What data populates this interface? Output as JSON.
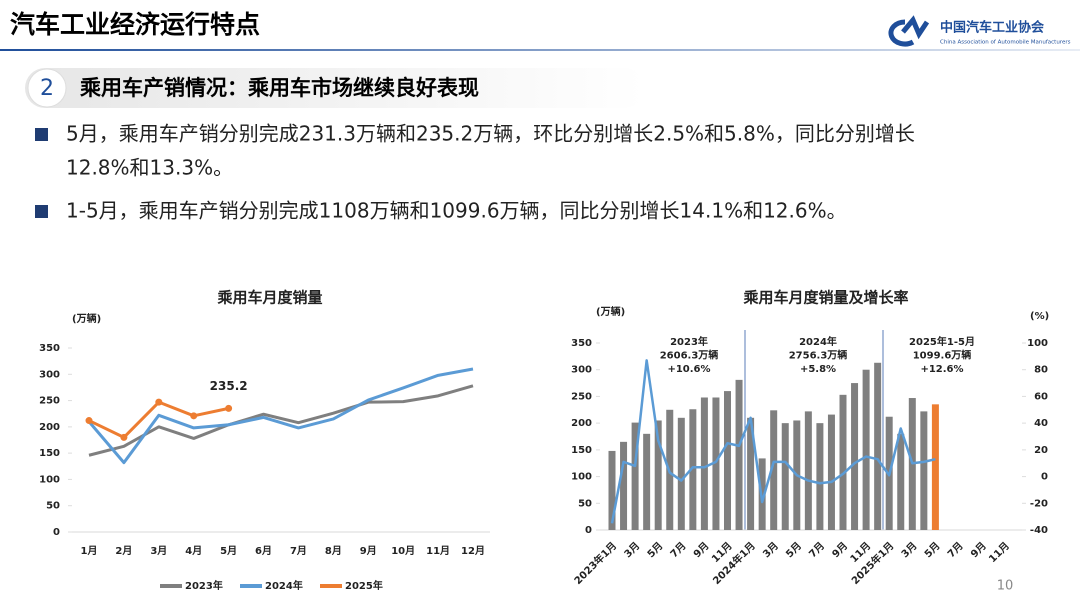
{
  "header": {
    "title": "汽车工业经济运行特点",
    "logo_cn": "中国汽车工业协会",
    "logo_en": "China Association of Automobile Manufacturers"
  },
  "section": {
    "number": "2",
    "title": "乘用车产销情况：乘用车市场继续良好表现"
  },
  "bullets": [
    [
      "5月，乘用车产销分别完成231.3万辆和235.2万辆，环比分别增长2.5%和5.8%，同比分别增长",
      "12.8%和13.3%。"
    ],
    [
      "1-5月，乘用车产销分别完成1108万辆和1099.6万辆，同比分别增长14.1%和12.6%。"
    ]
  ],
  "page_number": "10",
  "chart_data": [
    {
      "type": "line",
      "title": "乘用车月度销量",
      "y_label": "(万辆)",
      "categories": [
        "1月",
        "2月",
        "3月",
        "4月",
        "5月",
        "6月",
        "7月",
        "8月",
        "9月",
        "10月",
        "11月",
        "12月"
      ],
      "series": [
        {
          "name": "2023年",
          "color": "#7f7f7f",
          "values": [
            146,
            163,
            200,
            178,
            204,
            224,
            208,
            226,
            247,
            248,
            259,
            278
          ]
        },
        {
          "name": "2024年",
          "color": "#5b9bd5",
          "values": [
            210,
            132,
            222,
            198,
            204,
            218,
            198,
            215,
            251,
            274,
            298,
            310
          ]
        },
        {
          "name": "2025年",
          "color": "#ed7d31",
          "values": [
            212,
            180,
            247,
            221,
            235.2,
            null,
            null,
            null,
            null,
            null,
            null,
            null
          ],
          "markers": true
        }
      ],
      "data_labels": [
        {
          "series": 2,
          "index": 4
        }
      ],
      "ylim": [
        0,
        350
      ],
      "yticks": [
        0,
        50,
        100,
        150,
        200,
        250,
        300,
        350
      ],
      "legend": "bottom"
    },
    {
      "type": "bar_line",
      "title": "乘用车月度销量及增长率",
      "y_label": "(万辆)",
      "y2_label": "(%)",
      "categories": [
        "2023年1月",
        null,
        "3月",
        null,
        "5月",
        null,
        "7月",
        null,
        "9月",
        null,
        "11月",
        null,
        "2024年1月",
        null,
        "3月",
        null,
        "5月",
        null,
        "7月",
        null,
        "9月",
        null,
        "11月",
        null,
        "2025年1月",
        null,
        "3月",
        null,
        "5月",
        null,
        "7月",
        null,
        "9月",
        null,
        "11月",
        null
      ],
      "series": [
        {
          "type": "bar",
          "colors": [
            "#7f7f7f",
            "#7f7f7f",
            "#7f7f7f",
            "#7f7f7f",
            "#7f7f7f",
            "#7f7f7f",
            "#7f7f7f",
            "#7f7f7f",
            "#7f7f7f",
            "#7f7f7f",
            "#7f7f7f",
            "#7f7f7f",
            "#7f7f7f",
            "#7f7f7f",
            "#7f7f7f",
            "#7f7f7f",
            "#7f7f7f",
            "#7f7f7f",
            "#7f7f7f",
            "#7f7f7f",
            "#7f7f7f",
            "#7f7f7f",
            "#7f7f7f",
            "#7f7f7f",
            "#7f7f7f",
            "#7f7f7f",
            "#7f7f7f",
            "#7f7f7f",
            "#ed7d31",
            null,
            null,
            null,
            null,
            null,
            null,
            null
          ],
          "values": [
            148,
            165,
            201,
            180,
            205,
            225,
            210,
            226,
            248,
            248,
            260,
            281,
            210,
            134,
            224,
            200,
            205,
            222,
            200,
            216,
            253,
            275,
            300,
            313,
            212,
            180,
            247,
            222,
            235.2,
            null,
            null,
            null,
            null,
            null,
            null,
            null
          ]
        },
        {
          "type": "line",
          "axis": "y2",
          "color": "#5b9bd5",
          "values": [
            -35,
            11,
            8,
            87,
            27,
            3,
            -3,
            7,
            7,
            11,
            25,
            23,
            44,
            -19,
            11,
            11,
            1,
            -3,
            -5,
            -4,
            2,
            10,
            15,
            13,
            1,
            36,
            10,
            11,
            13,
            null,
            null,
            null,
            null,
            null,
            null,
            null
          ]
        }
      ],
      "annotations": [
        [
          "2023年",
          "2606.3万辆",
          "+10.6%"
        ],
        [
          "2024年",
          "2756.3万辆",
          "+5.8%"
        ],
        [
          "2025年1-5月",
          "1099.6万辆",
          "+12.6%"
        ]
      ],
      "ylim": [
        0,
        350
      ],
      "yticks": [
        0,
        50,
        100,
        150,
        200,
        250,
        300,
        350
      ],
      "y2lim": [
        -40,
        100
      ],
      "y2ticks": [
        -40,
        -20,
        0,
        20,
        40,
        60,
        80,
        100
      ]
    }
  ]
}
